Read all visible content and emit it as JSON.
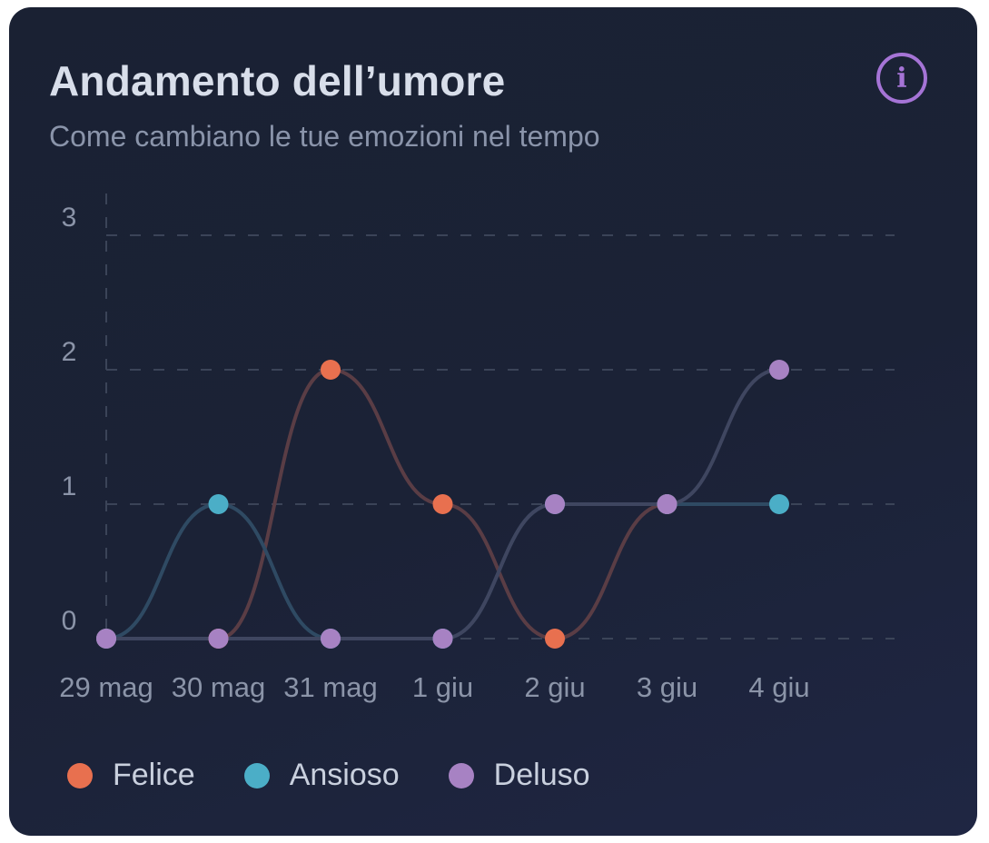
{
  "card": {
    "title": "Andamento dell’umore",
    "subtitle": "Come cambiano le tue emozioni nel tempo",
    "info_icon_glyph": "i"
  },
  "chart_data": {
    "type": "line",
    "categories": [
      "29 mag",
      "30 mag",
      "31 mag",
      "1 giu",
      "2 giu",
      "3 giu",
      "4 giu"
    ],
    "y_ticks": [
      "0",
      "1",
      "2",
      "3"
    ],
    "ylim": [
      0,
      3
    ],
    "grid": true,
    "legend_position": "bottom",
    "series": [
      {
        "name": "Felice",
        "color": "#e8704f",
        "line_color": "#5a3d45",
        "values": [
          0,
          0,
          2,
          1,
          0,
          1,
          null
        ]
      },
      {
        "name": "Ansioso",
        "color": "#4baec7",
        "line_color": "#2f4a63",
        "values": [
          0,
          1,
          0,
          0,
          1,
          1,
          1
        ]
      },
      {
        "name": "Deluso",
        "color": "#a782c3",
        "line_color": "#3f4660",
        "values": [
          0,
          0,
          0,
          0,
          1,
          1,
          2
        ]
      }
    ],
    "title": "",
    "xlabel": "",
    "ylabel": ""
  },
  "colors": {
    "background": "#1b2236",
    "title": "#d8deea",
    "subtitle": "#8a94aa",
    "accent": "#a574d6",
    "grid": "#3b4458",
    "tick_label": "#8b94a8"
  }
}
